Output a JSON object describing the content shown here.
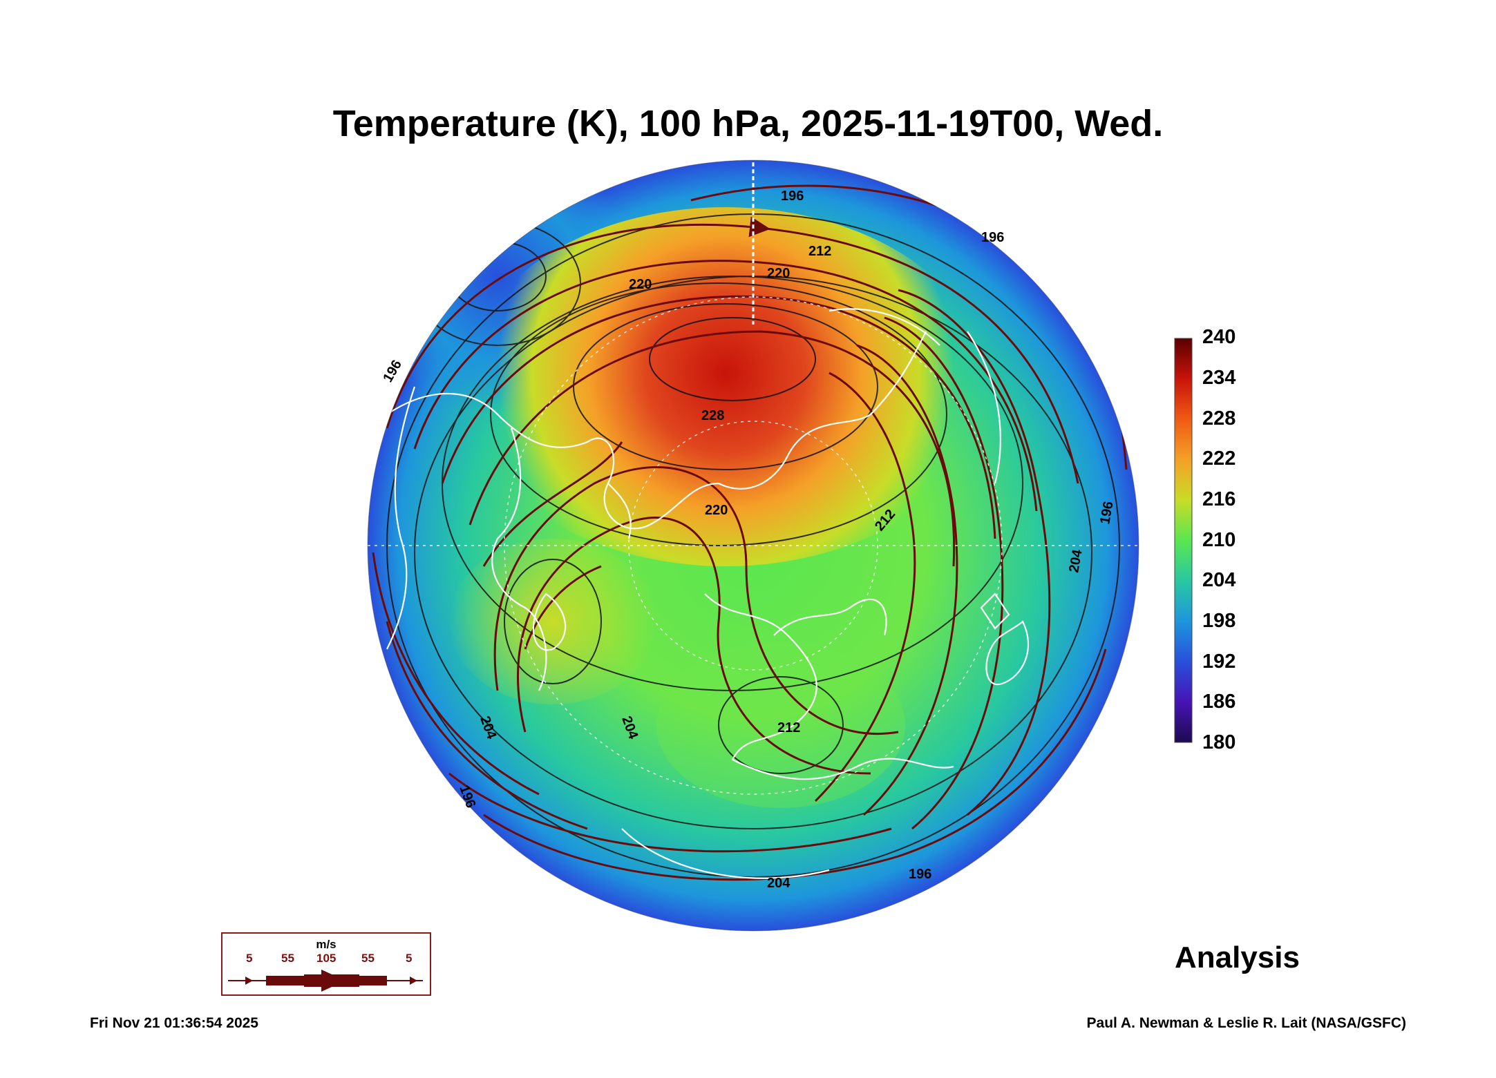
{
  "title": "Temperature (K), 100 hPa, 2025-11-19T00, Wed.",
  "colorbar": {
    "ticks": [
      "240",
      "234",
      "228",
      "222",
      "216",
      "210",
      "204",
      "198",
      "192",
      "186",
      "180"
    ],
    "colors": [
      "#5a0000",
      "#c8140a",
      "#f05a14",
      "#f5a028",
      "#c8dc28",
      "#5ae650",
      "#28c8a0",
      "#1e96dc",
      "#2850dc",
      "#4614b4",
      "#1e0a50"
    ]
  },
  "contour_labels": [
    "196",
    "196",
    "196",
    "196",
    "204",
    "204",
    "204",
    "212",
    "212",
    "220",
    "220",
    "220",
    "228",
    "204",
    "196",
    "196",
    "212"
  ],
  "wind_legend": {
    "units": "m/s",
    "values": [
      "5",
      "55",
      "105",
      "55",
      "5"
    ]
  },
  "analysis_label": "Analysis",
  "timestamp": "Fri Nov 21 01:36:54 2025",
  "credit": "Paul A. Newman & Leslie R. Lait (NASA/GSFC)"
}
